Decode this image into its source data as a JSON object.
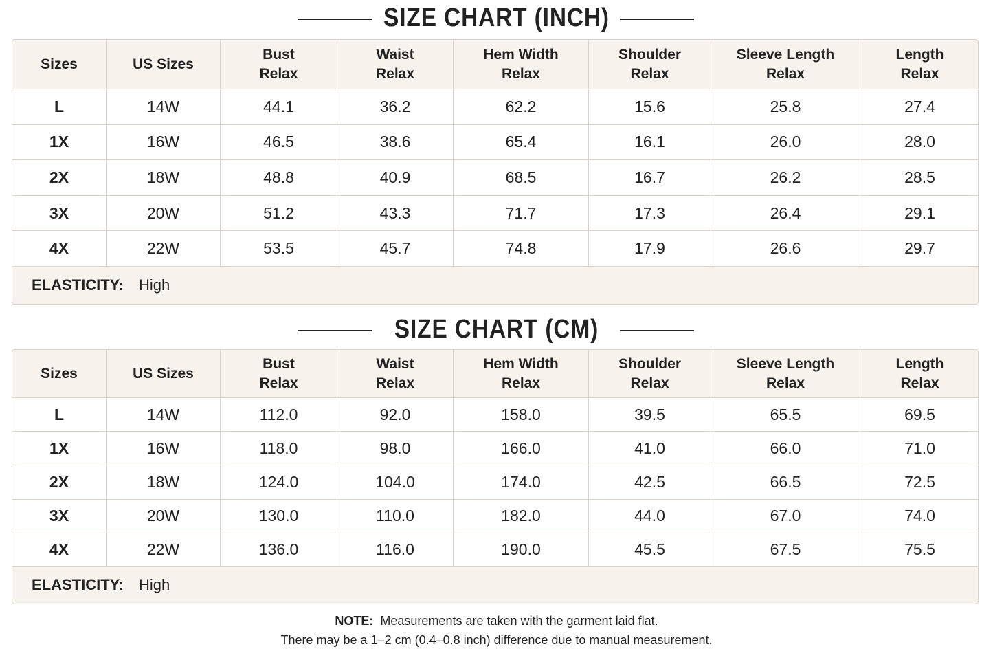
{
  "tables": [
    {
      "title": "SIZE CHART (INCH)",
      "header": [
        [
          "Sizes"
        ],
        [
          "US Sizes"
        ],
        [
          "Bust",
          "Relax"
        ],
        [
          "Waist",
          "Relax"
        ],
        [
          "Hem Width",
          "Relax"
        ],
        [
          "Shoulder",
          "Relax"
        ],
        [
          "Sleeve Length",
          "Relax"
        ],
        [
          "Length",
          "Relax"
        ]
      ],
      "rows": [
        [
          "L",
          "14W",
          "44.1",
          "36.2",
          "62.2",
          "15.6",
          "25.8",
          "27.4"
        ],
        [
          "1X",
          "16W",
          "46.5",
          "38.6",
          "65.4",
          "16.1",
          "26.0",
          "28.0"
        ],
        [
          "2X",
          "18W",
          "48.8",
          "40.9",
          "68.5",
          "16.7",
          "26.2",
          "28.5"
        ],
        [
          "3X",
          "20W",
          "51.2",
          "43.3",
          "71.7",
          "17.3",
          "26.4",
          "29.1"
        ],
        [
          "4X",
          "22W",
          "53.5",
          "45.7",
          "74.8",
          "17.9",
          "26.6",
          "29.7"
        ]
      ],
      "elasticity": {
        "label": "ELASTICITY:",
        "value": "High"
      }
    },
    {
      "title": "SIZE CHART (CM)",
      "header": [
        [
          "Sizes"
        ],
        [
          "US Sizes"
        ],
        [
          "Bust",
          "Relax"
        ],
        [
          "Waist",
          "Relax"
        ],
        [
          "Hem Width",
          "Relax"
        ],
        [
          "Shoulder",
          "Relax"
        ],
        [
          "Sleeve Length",
          "Relax"
        ],
        [
          "Length",
          "Relax"
        ]
      ],
      "rows": [
        [
          "L",
          "14W",
          "112.0",
          "92.0",
          "158.0",
          "39.5",
          "65.5",
          "69.5"
        ],
        [
          "1X",
          "16W",
          "118.0",
          "98.0",
          "166.0",
          "41.0",
          "66.0",
          "71.0"
        ],
        [
          "2X",
          "18W",
          "124.0",
          "104.0",
          "174.0",
          "42.5",
          "66.5",
          "72.5"
        ],
        [
          "3X",
          "20W",
          "130.0",
          "110.0",
          "182.0",
          "44.0",
          "67.0",
          "74.0"
        ],
        [
          "4X",
          "22W",
          "136.0",
          "116.0",
          "190.0",
          "45.5",
          "67.5",
          "75.5"
        ]
      ],
      "elasticity": {
        "label": "ELASTICITY:",
        "value": "High"
      }
    }
  ],
  "note": {
    "label": "NOTE:",
    "line1": "Measurements are taken with the garment laid flat.",
    "line2": "There may be a 1–2 cm (0.4–0.8 inch) difference due to manual measurement."
  }
}
